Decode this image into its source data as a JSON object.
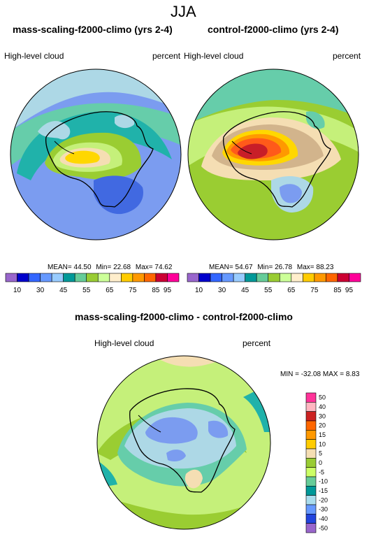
{
  "figure": {
    "title": "JJA"
  },
  "panels": [
    {
      "title": "mass-scaling-f2000-climo (yrs 2-4)",
      "left_label": "High-level cloud",
      "right_label": "percent",
      "stats": {
        "mean_label": "MEAN=",
        "mean": "44.50",
        "min_label": "Min=",
        "min": "22.68",
        "max_label": "Max=",
        "max": "74.62"
      }
    },
    {
      "title": "control-f2000-climo (yrs 2-4)",
      "left_label": "High-level cloud",
      "right_label": "percent",
      "stats": {
        "mean_label": "MEAN=",
        "mean": "54.67",
        "min_label": "Min=",
        "min": "26.78",
        "max_label": "Max=",
        "max": "88.23"
      }
    }
  ],
  "abs_colorbar": {
    "colors": [
      "#9966cc",
      "#0000cc",
      "#3366ff",
      "#6699ff",
      "#99ccff",
      "#009999",
      "#66cc99",
      "#99cc33",
      "#ccff99",
      "#ffeecc",
      "#ffcc00",
      "#ff9900",
      "#ff6600",
      "#cc0033",
      "#ff0099"
    ],
    "tick_labels": [
      "10",
      "30",
      "45",
      "55",
      "65",
      "75",
      "85",
      "95"
    ]
  },
  "diff_panel": {
    "title": "mass-scaling-f2000-climo - control-f2000-climo",
    "left_label": "High-level cloud",
    "right_label": "percent",
    "stats_text": "MIN = -32.08 MAX = 8.83"
  },
  "diff_colorbar": {
    "colors": [
      "#ff3399",
      "#ffb6c1",
      "#cc2222",
      "#ff6600",
      "#ff9900",
      "#ffcc00",
      "#f5deb3",
      "#99cc33",
      "#ccff66",
      "#66cc99",
      "#009999",
      "#aaddee",
      "#6699ff",
      "#2244dd",
      "#9966cc"
    ],
    "tick_labels": [
      "50",
      "40",
      "30",
      "20",
      "15",
      "10",
      "5",
      "0",
      "-5",
      "-10",
      "-15",
      "-20",
      "-30",
      "-40",
      "-50"
    ]
  },
  "map_palette": {
    "deep_blue": "#4169e1",
    "mid_blue": "#7b9cf0",
    "light_blue": "#add8e6",
    "teal": "#20b2aa",
    "seafoam": "#66cdaa",
    "green": "#9acd32",
    "lime": "#c5f07a",
    "wheat": "#f5deb3",
    "tan": "#d2b48c",
    "yellow": "#ffd700",
    "orange": "#ff9900",
    "red_orange": "#ff5a1a",
    "dark_red": "#c81e28",
    "coast": "#000000"
  }
}
